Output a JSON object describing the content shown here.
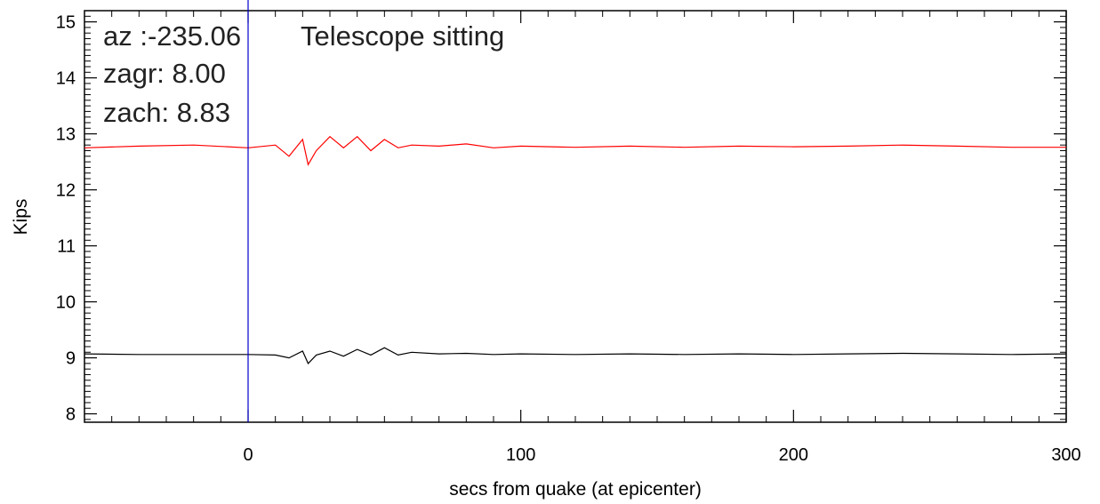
{
  "chart_data": {
    "type": "line",
    "title": "",
    "xlabel": "secs from quake (at epicenter)",
    "ylabel": "Kips",
    "xlim": [
      -60,
      300
    ],
    "ylim": [
      7.85,
      15.2
    ],
    "x_ticks": [
      0,
      100,
      200,
      300
    ],
    "y_ticks": [
      8,
      9,
      10,
      11,
      12,
      13,
      14,
      15
    ],
    "grid": false,
    "annotations": [
      "az  :-235.06",
      "Telescope sitting",
      "zagr: 8.00",
      "zach: 8.83"
    ],
    "vertical_line": {
      "x": 0,
      "color": "#0000cc"
    },
    "series": [
      {
        "color": "#ff0000",
        "x": [
          -60,
          -40,
          -20,
          0,
          10,
          15,
          20,
          22,
          25,
          30,
          35,
          40,
          45,
          50,
          55,
          60,
          70,
          80,
          90,
          100,
          120,
          140,
          160,
          180,
          200,
          220,
          240,
          260,
          280,
          300
        ],
        "values": [
          12.75,
          12.78,
          12.8,
          12.75,
          12.8,
          12.6,
          12.9,
          12.45,
          12.7,
          12.95,
          12.75,
          12.95,
          12.7,
          12.9,
          12.75,
          12.8,
          12.78,
          12.82,
          12.75,
          12.78,
          12.76,
          12.78,
          12.76,
          12.78,
          12.77,
          12.78,
          12.8,
          12.78,
          12.76,
          12.76
        ]
      },
      {
        "color": "#000000",
        "x": [
          -60,
          -40,
          -20,
          0,
          10,
          15,
          20,
          22,
          25,
          30,
          35,
          40,
          45,
          50,
          55,
          60,
          70,
          80,
          90,
          100,
          120,
          140,
          160,
          180,
          200,
          220,
          240,
          260,
          280,
          300
        ],
        "values": [
          9.07,
          9.06,
          9.06,
          9.06,
          9.05,
          9.0,
          9.12,
          8.9,
          9.05,
          9.12,
          9.03,
          9.15,
          9.05,
          9.18,
          9.05,
          9.1,
          9.07,
          9.08,
          9.06,
          9.07,
          9.06,
          9.07,
          9.06,
          9.07,
          9.06,
          9.07,
          9.08,
          9.07,
          9.06,
          9.07
        ]
      }
    ]
  }
}
